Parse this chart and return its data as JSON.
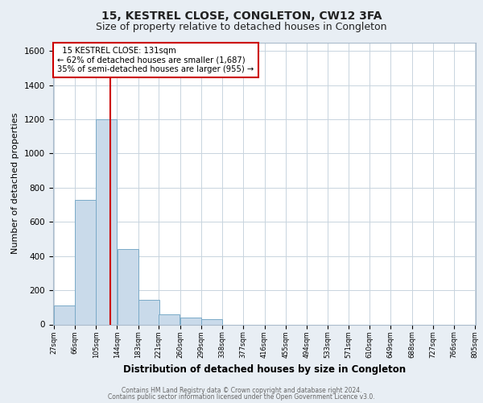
{
  "title": "15, KESTREL CLOSE, CONGLETON, CW12 3FA",
  "subtitle": "Size of property relative to detached houses in Congleton",
  "xlabel": "Distribution of detached houses by size in Congleton",
  "ylabel": "Number of detached properties",
  "bar_left_edges": [
    27,
    66,
    105,
    144,
    183,
    221,
    260,
    299,
    338,
    377,
    416,
    455,
    494,
    533,
    571,
    610,
    649,
    688,
    727,
    766
  ],
  "bar_heights": [
    110,
    730,
    1200,
    440,
    145,
    60,
    40,
    30,
    0,
    0,
    0,
    0,
    0,
    0,
    0,
    0,
    0,
    0,
    0,
    0
  ],
  "bin_width": 39,
  "bar_color": "#c9daea",
  "bar_edge_color": "#7aaac8",
  "tick_labels": [
    "27sqm",
    "66sqm",
    "105sqm",
    "144sqm",
    "183sqm",
    "221sqm",
    "260sqm",
    "299sqm",
    "338sqm",
    "377sqm",
    "416sqm",
    "455sqm",
    "494sqm",
    "533sqm",
    "571sqm",
    "610sqm",
    "649sqm",
    "688sqm",
    "727sqm",
    "766sqm",
    "805sqm"
  ],
  "ylim": [
    0,
    1650
  ],
  "yticks": [
    0,
    200,
    400,
    600,
    800,
    1000,
    1200,
    1400,
    1600
  ],
  "vline_x": 131,
  "vline_color": "#cc0000",
  "annotation_title": "15 KESTREL CLOSE: 131sqm",
  "annotation_line1": "← 62% of detached houses are smaller (1,687)",
  "annotation_line2": "35% of semi-detached houses are larger (955) →",
  "footer_line1": "Contains HM Land Registry data © Crown copyright and database right 2024.",
  "footer_line2": "Contains public sector information licensed under the Open Government Licence v3.0.",
  "bg_color": "#e8eef4",
  "plot_bg_color": "#ffffff",
  "grid_color": "#c8d4de",
  "title_fontsize": 10,
  "subtitle_fontsize": 9
}
